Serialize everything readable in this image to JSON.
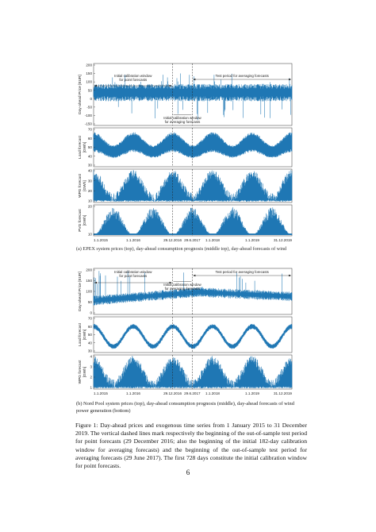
{
  "figure": {
    "panel_a": {
      "ylabels": [
        "Day-ahead Price [EUR]",
        "Load forecast [GWh]",
        "WPG forecast [GWh]",
        "PVG forecast [GWh]"
      ],
      "yticks": [
        [
          "200",
          "150",
          "100",
          "50",
          "0",
          "-50",
          "-100",
          "-150"
        ],
        [
          "70",
          "60",
          "50",
          "40",
          "30"
        ],
        [
          "40",
          "30",
          "20",
          "10"
        ],
        [
          "20",
          "10"
        ]
      ],
      "xticks": [
        "1.1.2015",
        "1.1.2016",
        "29.12.2016",
        "29.6.2017",
        "1.1.2018",
        "1.1.2019",
        "31.12.2019"
      ],
      "annotations": {
        "calib_point": "Initial calibration window\nfor point forecasts",
        "test_period": "Test period for averaging forecasts",
        "calib_avg": "Initial calibration window\nfor averaging forecasts"
      },
      "caption": "(a) EPEX system prices (top), day-ahead consumption prognosis (middle top), day-ahead forecasts of wind"
    },
    "panel_b": {
      "ylabels": [
        "Day-ahead Price [EUR]",
        "Load forecast [GWh]",
        "WPG forecast [GWh]"
      ],
      "yticks": [
        [
          "200",
          "150",
          "100",
          "50",
          "0"
        ],
        [
          "70",
          "60",
          "50",
          "40",
          "30"
        ],
        [
          "4",
          "3",
          "2",
          "1"
        ]
      ],
      "xticks": [
        "1.1.2015",
        "1.1.2016",
        "29.12.2016",
        "29.6.2017",
        "1.1.2018",
        "1.1.2019",
        "31.12.2019"
      ],
      "annotations": {
        "calib_point": "Initial calibration window\nfor point forecasts",
        "test_period": "Test period for averaging forecasts",
        "calib_avg": "Initial calibration window\nfor averaging forecasts"
      },
      "caption": "(b) Nord Pool system prices (top), day-ahead consumption prognosis (middle), day-ahead forecasts of wind power generation (bottom)"
    },
    "caption": "Figure 1: Day-ahead prices and exogenous time series from 1 January 2015 to 31 December 2019. The vertical dashed lines mark respectively the beginning of the out-of-sample test period for point forecasts (29 December 2016; also the beginning of the initial 182-day calibration window for averaging forecasts) and the beginning of the out-of-sample test period for averaging forecasts (29 June 2017). The first 728 days constitute the initial calibration window for point forecasts.",
    "page_number": "6",
    "series_color": "#1f77b4"
  }
}
